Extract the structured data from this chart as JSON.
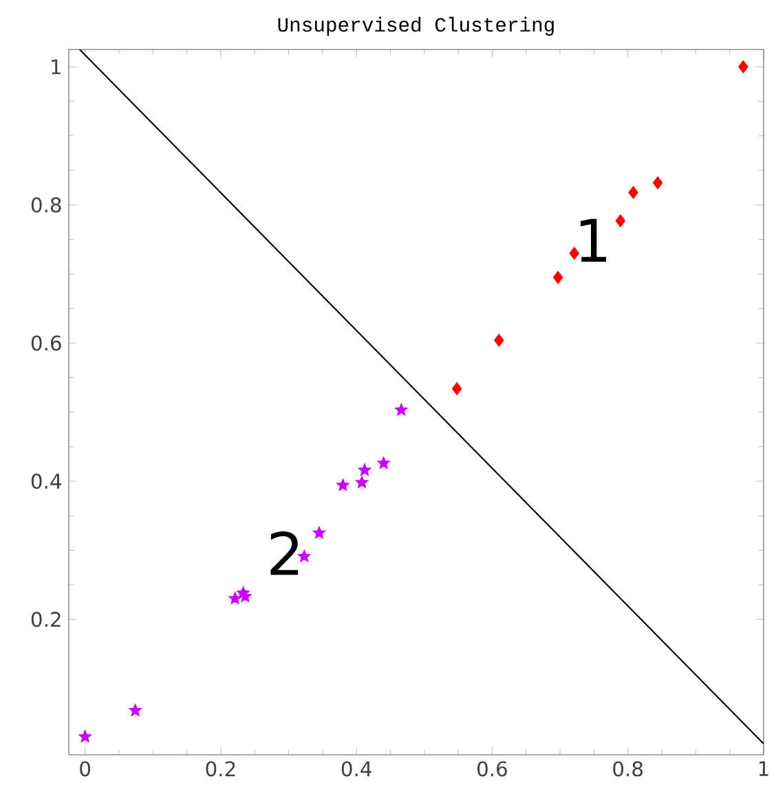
{
  "chart_data": {
    "type": "scatter",
    "title": "Unsupervised   Clustering",
    "xlim": [
      -0.024,
      1.0
    ],
    "ylim": [
      0.004,
      1.025
    ],
    "xticks": [
      0,
      0.2,
      0.4,
      0.6,
      0.8,
      1
    ],
    "yticks": [
      0.2,
      0.4,
      0.6,
      0.8,
      1
    ],
    "series": [
      {
        "marker": "diamond",
        "color": "#ff0000",
        "x": [
          0.97,
          0.844,
          0.808,
          0.789,
          0.721,
          0.697,
          0.61,
          0.548
        ],
        "values": [
          1.0,
          0.832,
          0.818,
          0.777,
          0.73,
          0.695,
          0.604,
          0.534
        ]
      },
      {
        "marker": "star",
        "color": "#cc00ff",
        "x": [
          0.0,
          0.074,
          0.221,
          0.233,
          0.236,
          0.323,
          0.345,
          0.38,
          0.408,
          0.412,
          0.44,
          0.466
        ],
        "values": [
          0.03,
          0.068,
          0.23,
          0.238,
          0.233,
          0.291,
          0.325,
          0.394,
          0.398,
          0.416,
          0.426,
          0.503
        ]
      },
      {
        "type": "line",
        "marker": "none",
        "color": "#000000",
        "x": [
          -0.008,
          1.0
        ],
        "values": [
          1.025,
          0.02
        ]
      }
    ],
    "annotations": [
      "1",
      "2"
    ]
  }
}
